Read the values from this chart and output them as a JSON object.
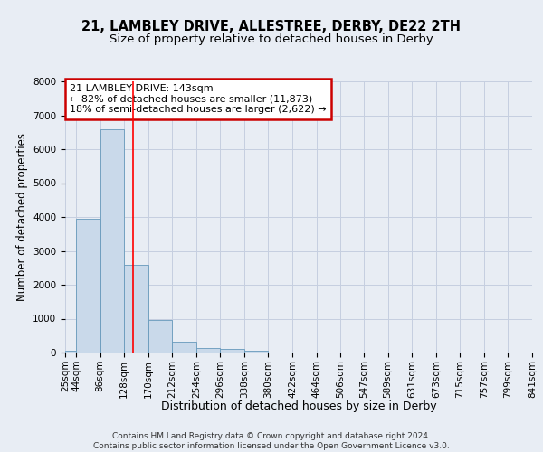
{
  "title1": "21, LAMBLEY DRIVE, ALLESTREE, DERBY, DE22 2TH",
  "title2": "Size of property relative to detached houses in Derby",
  "xlabel": "Distribution of detached houses by size in Derby",
  "ylabel": "Number of detached properties",
  "footer": "Contains HM Land Registry data © Crown copyright and database right 2024.\nContains public sector information licensed under the Open Government Licence v3.0.",
  "bin_edges": [
    25,
    44,
    86,
    128,
    170,
    212,
    254,
    296,
    338,
    380,
    422,
    464,
    506,
    547,
    589,
    631,
    673,
    715,
    757,
    799,
    841
  ],
  "bar_heights": [
    50,
    3950,
    6600,
    2600,
    950,
    310,
    130,
    110,
    60,
    0,
    0,
    0,
    0,
    0,
    0,
    0,
    0,
    0,
    0,
    0
  ],
  "bar_color": "#c9d9ea",
  "bar_edge_color": "#6699bb",
  "grid_color": "#c5cfe0",
  "background_color": "#e8edf4",
  "red_line_x": 143,
  "annotation_text": "21 LAMBLEY DRIVE: 143sqm\n← 82% of detached houses are smaller (11,873)\n18% of semi-detached houses are larger (2,622) →",
  "annotation_box_facecolor": "#ffffff",
  "annotation_box_edgecolor": "#cc0000",
  "annotation_text_color": "#000000",
  "ylim": [
    0,
    8000
  ],
  "yticks": [
    0,
    1000,
    2000,
    3000,
    4000,
    5000,
    6000,
    7000,
    8000
  ],
  "xtick_labels": [
    "25sqm",
    "44sqm",
    "86sqm",
    "128sqm",
    "170sqm",
    "212sqm",
    "254sqm",
    "296sqm",
    "338sqm",
    "380sqm",
    "422sqm",
    "464sqm",
    "506sqm",
    "547sqm",
    "589sqm",
    "631sqm",
    "673sqm",
    "715sqm",
    "757sqm",
    "799sqm",
    "841sqm"
  ],
  "title1_fontsize": 10.5,
  "title2_fontsize": 9.5,
  "xlabel_fontsize": 9,
  "ylabel_fontsize": 8.5,
  "tick_fontsize": 7.5,
  "annotation_fontsize": 8,
  "footer_fontsize": 6.5
}
